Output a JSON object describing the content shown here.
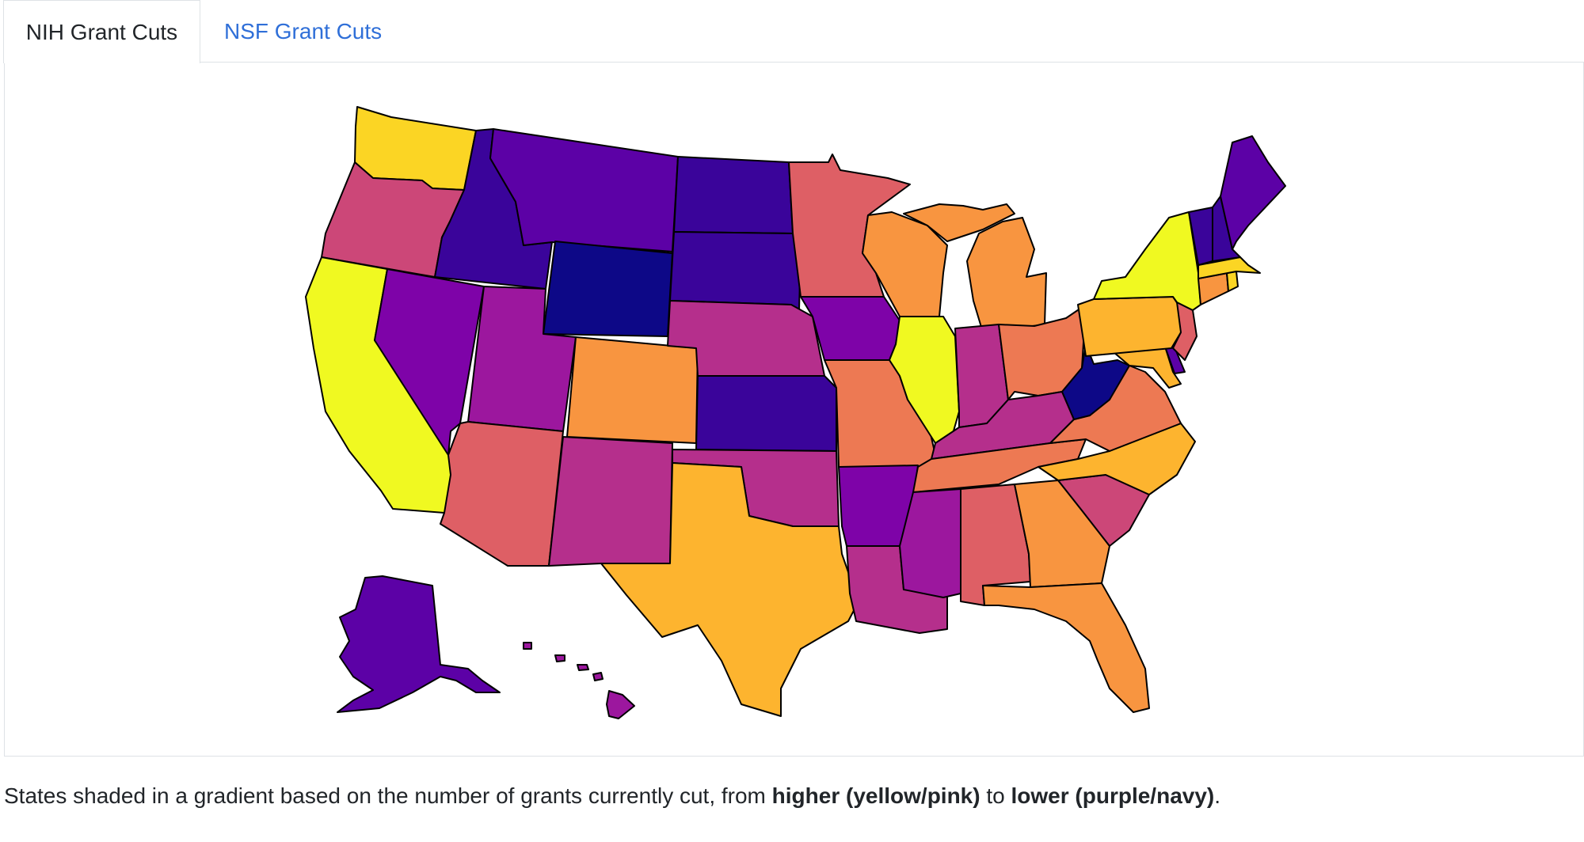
{
  "tabs": [
    {
      "label": "NIH Grant Cuts",
      "active": true
    },
    {
      "label": "NSF Grant Cuts",
      "active": false
    }
  ],
  "caption": {
    "before": "States shaded in a gradient based on the number of grants currently cut, from ",
    "high": "higher (yellow/pink)",
    "middle": " to ",
    "low": "lower (purple/navy)",
    "after": "."
  },
  "colors": {
    "navy": "#0d0887",
    "indigo": "#3a049a",
    "violet": "#5c01a6",
    "purple": "#7e03a8",
    "magenta": "#9c179e",
    "rose": "#b52f8c",
    "pink": "#cc4778",
    "coral": "#de5f65",
    "salmon": "#ed7953",
    "orange": "#f89540",
    "amber": "#fdb42f",
    "gold": "#fbd524",
    "yellow": "#f0f921"
  },
  "states": [
    {
      "name": "WA",
      "color": "gold"
    },
    {
      "name": "OR",
      "color": "pink"
    },
    {
      "name": "CA",
      "color": "yellow"
    },
    {
      "name": "ID",
      "color": "indigo"
    },
    {
      "name": "NV",
      "color": "purple"
    },
    {
      "name": "MT",
      "color": "violet"
    },
    {
      "name": "WY",
      "color": "navy"
    },
    {
      "name": "UT",
      "color": "magenta"
    },
    {
      "name": "AZ",
      "color": "coral"
    },
    {
      "name": "CO",
      "color": "orange"
    },
    {
      "name": "NM",
      "color": "rose"
    },
    {
      "name": "ND",
      "color": "indigo"
    },
    {
      "name": "SD",
      "color": "indigo"
    },
    {
      "name": "NE",
      "color": "rose"
    },
    {
      "name": "KS",
      "color": "indigo"
    },
    {
      "name": "OK",
      "color": "rose"
    },
    {
      "name": "TX",
      "color": "amber"
    },
    {
      "name": "MN",
      "color": "coral"
    },
    {
      "name": "IA",
      "color": "purple"
    },
    {
      "name": "MO",
      "color": "salmon"
    },
    {
      "name": "AR",
      "color": "purple"
    },
    {
      "name": "LA",
      "color": "rose"
    },
    {
      "name": "WI",
      "color": "orange"
    },
    {
      "name": "IL",
      "color": "yellow"
    },
    {
      "name": "MI",
      "color": "orange"
    },
    {
      "name": "IN",
      "color": "rose"
    },
    {
      "name": "OH",
      "color": "salmon"
    },
    {
      "name": "KY",
      "color": "rose"
    },
    {
      "name": "TN",
      "color": "salmon"
    },
    {
      "name": "MS",
      "color": "magenta"
    },
    {
      "name": "AL",
      "color": "coral"
    },
    {
      "name": "GA",
      "color": "orange"
    },
    {
      "name": "FL",
      "color": "orange"
    },
    {
      "name": "SC",
      "color": "pink"
    },
    {
      "name": "NC",
      "color": "amber"
    },
    {
      "name": "VA",
      "color": "salmon"
    },
    {
      "name": "WV",
      "color": "navy"
    },
    {
      "name": "MD",
      "color": "amber"
    },
    {
      "name": "DE",
      "color": "violet"
    },
    {
      "name": "PA",
      "color": "amber"
    },
    {
      "name": "NJ",
      "color": "coral"
    },
    {
      "name": "NY",
      "color": "yellow"
    },
    {
      "name": "CT",
      "color": "orange"
    },
    {
      "name": "RI",
      "color": "gold"
    },
    {
      "name": "MA",
      "color": "gold"
    },
    {
      "name": "VT",
      "color": "indigo"
    },
    {
      "name": "NH",
      "color": "indigo"
    },
    {
      "name": "ME",
      "color": "violet"
    },
    {
      "name": "AK",
      "color": "violet"
    },
    {
      "name": "HI",
      "color": "magenta"
    }
  ]
}
